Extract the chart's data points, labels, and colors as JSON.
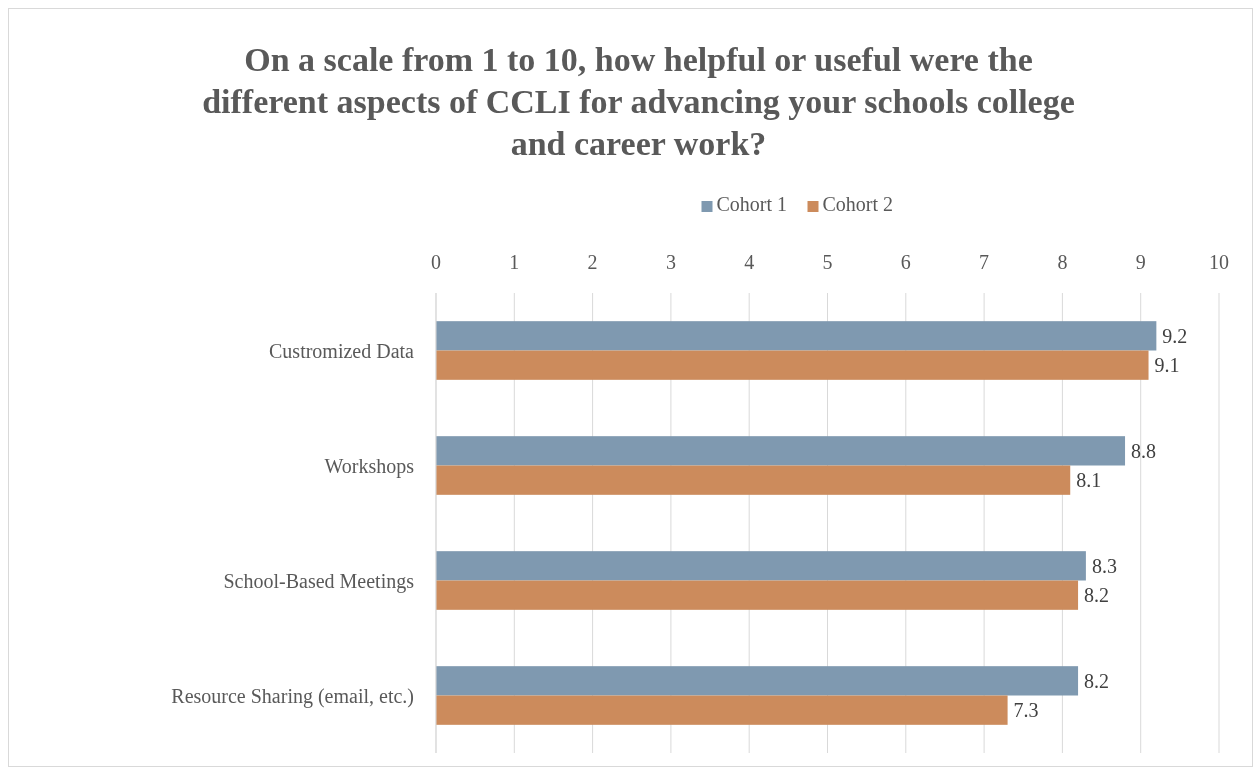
{
  "chart_data": {
    "type": "bar",
    "orientation": "horizontal",
    "title": "On a scale from 1 to 10, how helpful or useful were the different aspects of CCLI for advancing your schools college and career work?",
    "categories": [
      "Custromized Data",
      "Workshops",
      "School-Based Meetings",
      "Resource Sharing (email, etc.)"
    ],
    "series": [
      {
        "name": "Cohort 1",
        "color": "#7f99b0",
        "values": [
          9.2,
          8.8,
          8.3,
          8.2
        ]
      },
      {
        "name": "Cohort 2",
        "color": "#cc8b5c",
        "values": [
          9.1,
          8.1,
          8.2,
          7.3
        ]
      }
    ],
    "xlim": [
      0,
      10
    ],
    "xticks": [
      0,
      1,
      2,
      3,
      4,
      5,
      6,
      7,
      8,
      9,
      10
    ],
    "grid": "x",
    "legend": "top",
    "data_labels": true
  }
}
